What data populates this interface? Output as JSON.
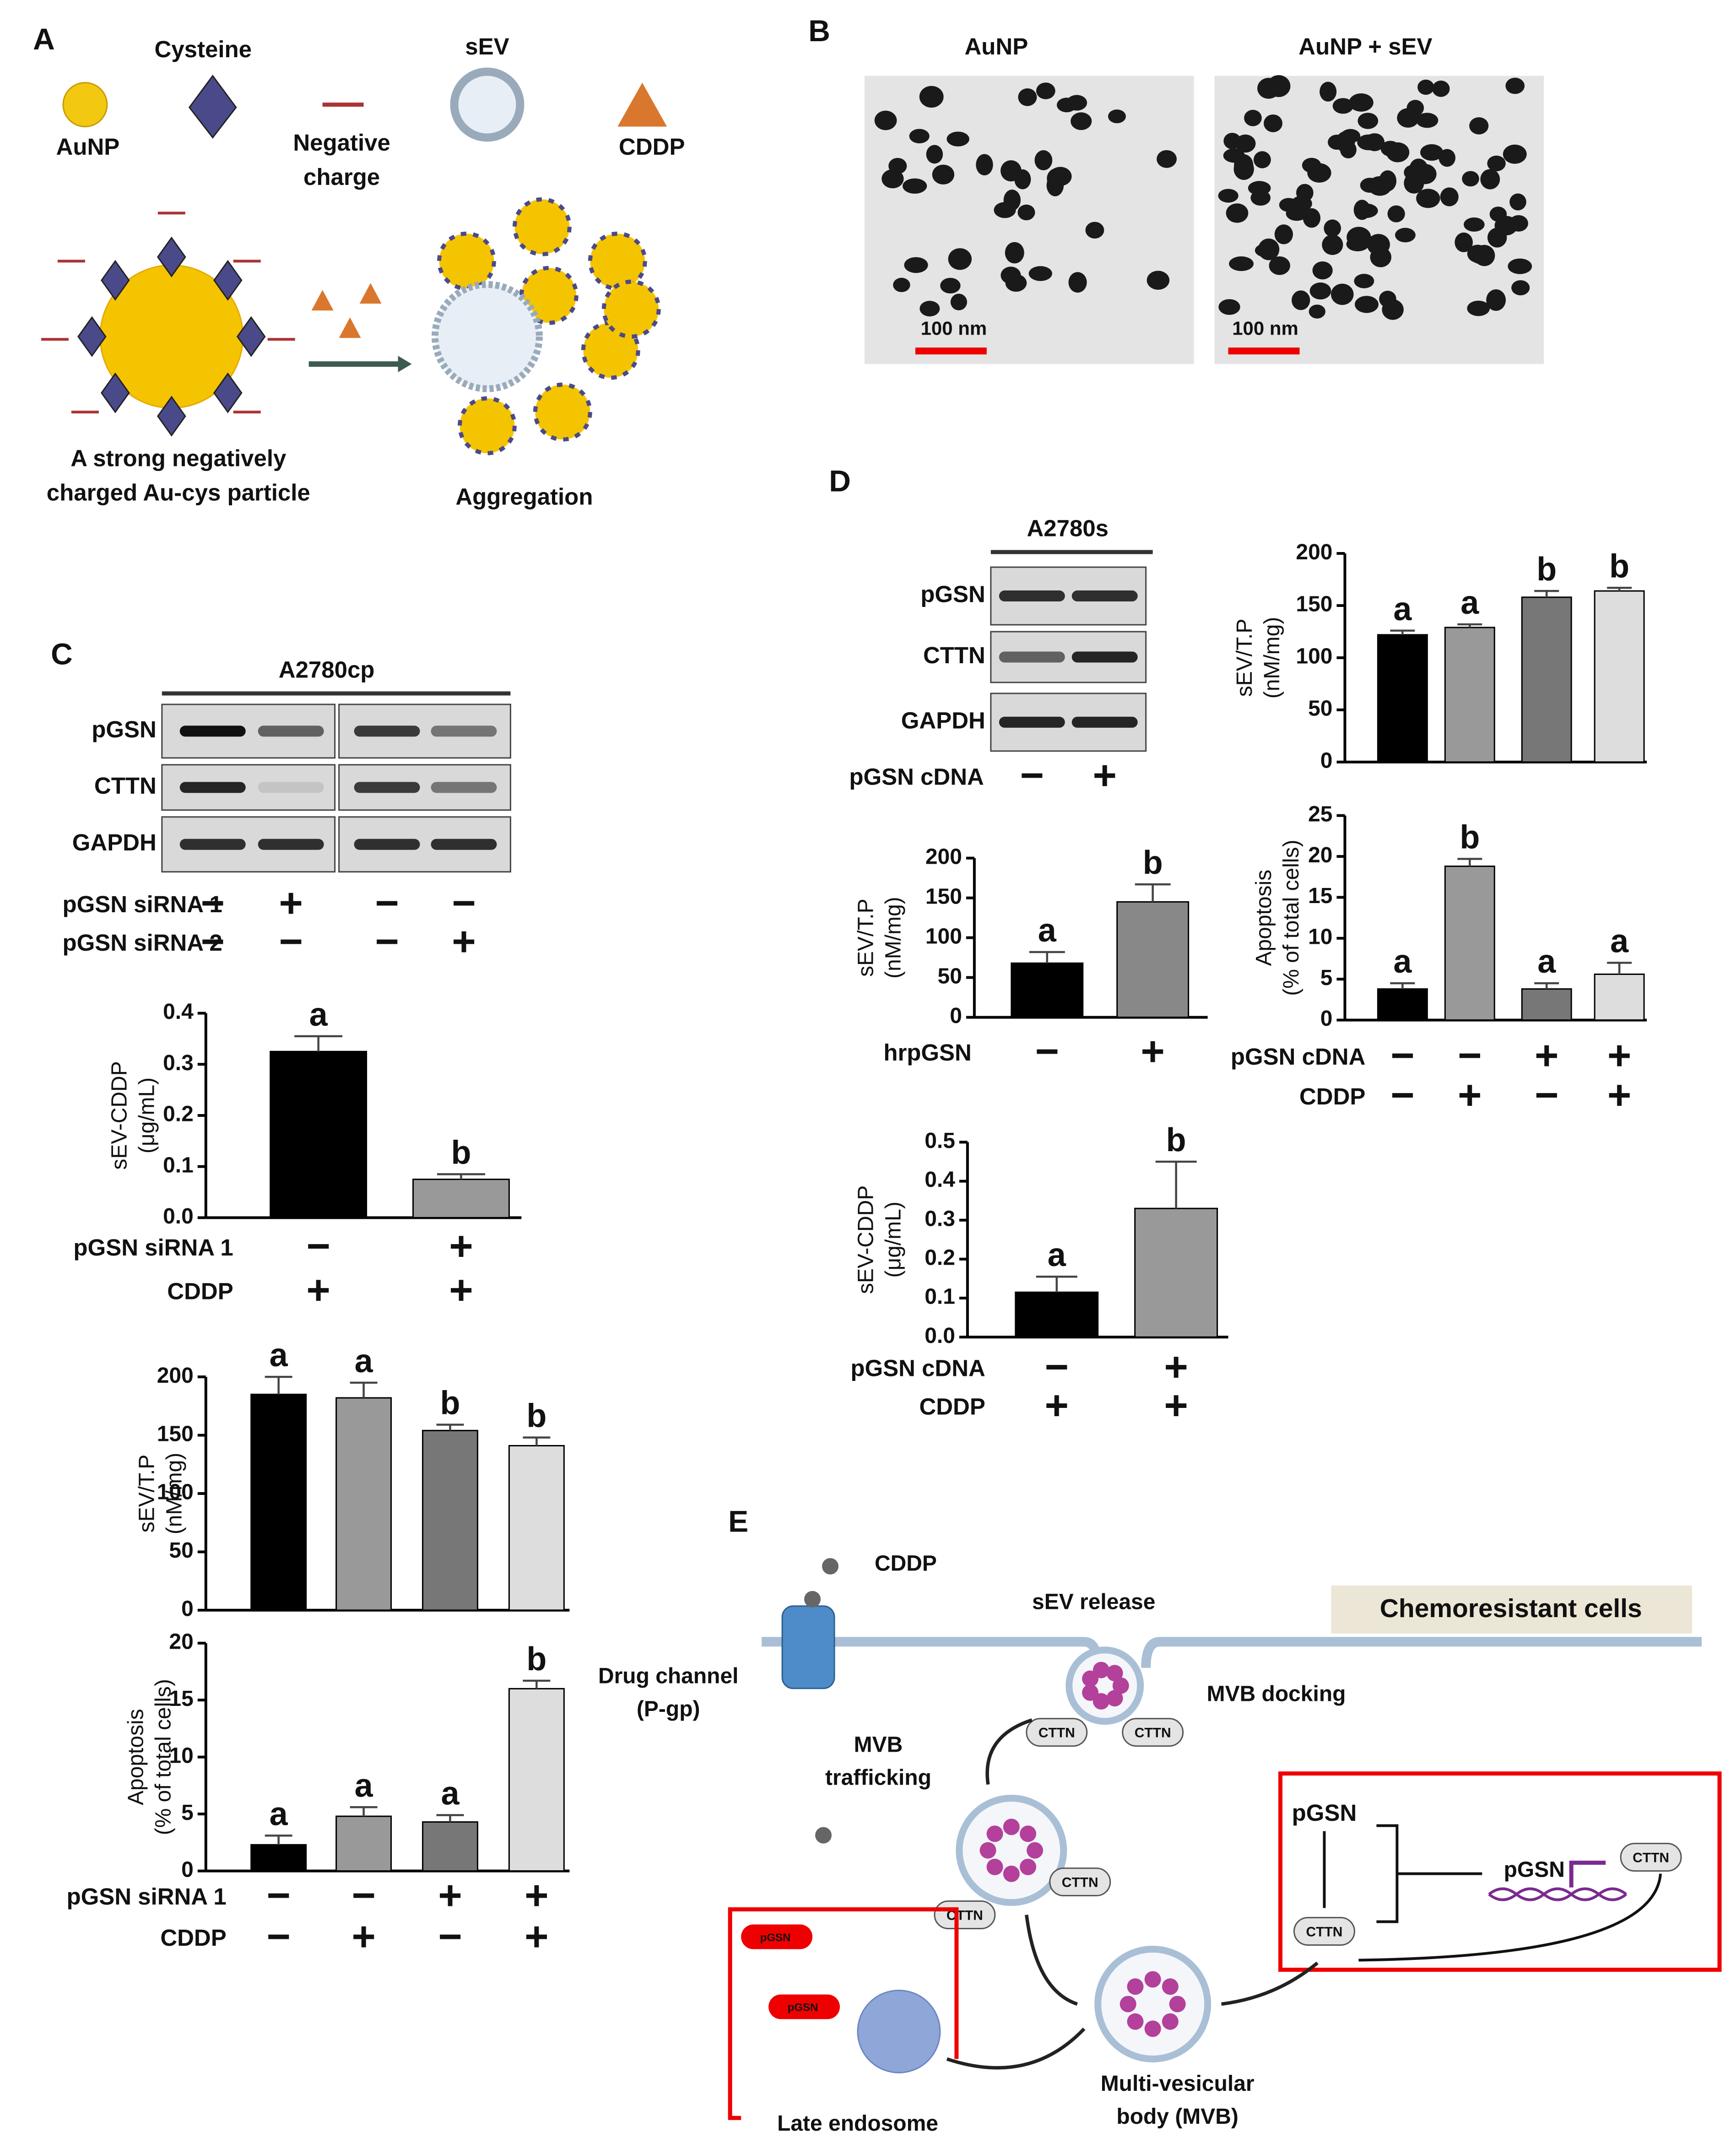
{
  "panel_a": {
    "label": "A",
    "cysteine": "Cysteine",
    "sev": "sEV",
    "aunp": "AuNP",
    "negative_charge": [
      "Negative",
      "charge"
    ],
    "cddp": "CDDP",
    "particle": [
      "A strong negatively",
      "charged Au-cys particle"
    ],
    "aggregation": "Aggregation"
  },
  "panel_b": {
    "label": "B",
    "left_title": "AuNP",
    "right_title": "AuNP + sEV",
    "scale_bars": [
      "100 nm",
      "100 nm"
    ]
  },
  "panel_c": {
    "label": "C",
    "blot": {
      "cell_line": "A2780cp",
      "rows": [
        "pGSN",
        "CTTN",
        "GAPDH"
      ],
      "conditions": [
        {
          "label": "pGSN siRNA 1",
          "signs": [
            "−",
            "+",
            "−",
            "−"
          ]
        },
        {
          "label": "pGSN siRNA 2",
          "signs": [
            "−",
            "−",
            "−",
            "+"
          ]
        }
      ]
    }
  },
  "panel_d": {
    "label": "D",
    "blot": {
      "cell_line": "A2780s",
      "rows": [
        "pGSN",
        "CTTN",
        "GAPDH"
      ],
      "conditions": [
        {
          "label": "pGSN cDNA",
          "signs": [
            "−",
            "+"
          ]
        }
      ]
    }
  },
  "chart_data": [
    {
      "type": "bar",
      "ylabel": [
        "sEV-CDDP",
        "(μg/mL)"
      ],
      "values": [
        0.325,
        0.075
      ],
      "errors": [
        0.03,
        0.01
      ],
      "letters": [
        "a",
        "b"
      ],
      "colors": [
        "#000000",
        "#999999"
      ],
      "ylim": [
        0,
        0.4
      ],
      "yticks": [
        {
          "value": 0,
          "label": "0.0"
        },
        0.1,
        0.2,
        0.3,
        0.4
      ],
      "conditions": [
        {
          "label": "pGSN siRNA 1",
          "signs": [
            "−",
            "+"
          ]
        },
        {
          "label": "CDDP",
          "signs": [
            "+",
            "+"
          ]
        }
      ]
    },
    {
      "type": "bar",
      "ylabel": [
        "sEV/T.P",
        "(nM/mg)"
      ],
      "values": [
        185,
        182,
        154,
        141
      ],
      "errors": [
        15,
        13,
        5,
        7
      ],
      "letters": [
        "a",
        "a",
        "b",
        "b"
      ],
      "colors": [
        "#000000",
        "#999999",
        "#777777",
        "#dddddd"
      ],
      "ylim": [
        0,
        200
      ],
      "yticks": [
        0,
        50,
        100,
        150,
        200
      ],
      "conditions": []
    },
    {
      "type": "bar",
      "ylabel": [
        "Apoptosis",
        "(% of total cells)"
      ],
      "values": [
        2.3,
        4.8,
        4.3,
        16
      ],
      "errors": [
        0.8,
        0.8,
        0.6,
        0.7
      ],
      "letters": [
        "a",
        "a",
        "a",
        "b"
      ],
      "colors": [
        "#000000",
        "#999999",
        "#777777",
        "#dddddd"
      ],
      "ylim": [
        0,
        20
      ],
      "yticks": [
        0,
        5,
        10,
        15,
        20
      ],
      "conditions": [
        {
          "label": "pGSN siRNA 1",
          "signs": [
            "−",
            "−",
            "+",
            "+"
          ]
        },
        {
          "label": "CDDP",
          "signs": [
            "−",
            "+",
            "−",
            "+"
          ]
        }
      ]
    },
    {
      "type": "bar",
      "ylabel": [
        "sEV/T.P",
        "(nM/mg)"
      ],
      "values": [
        122,
        129,
        158,
        164
      ],
      "errors": [
        4,
        3,
        6,
        3
      ],
      "letters": [
        "a",
        "a",
        "b",
        "b"
      ],
      "colors": [
        "#000000",
        "#999999",
        "#777777",
        "#dddddd"
      ],
      "ylim": [
        0,
        200
      ],
      "yticks": [
        0,
        50,
        100,
        150,
        200
      ],
      "conditions": []
    },
    {
      "type": "bar",
      "ylabel": [
        "sEV/T.P",
        "(nM/mg)"
      ],
      "values": [
        68,
        145
      ],
      "errors": [
        14,
        22
      ],
      "letters": [
        "a",
        "b"
      ],
      "colors": [
        "#000000",
        "#888888"
      ],
      "ylim": [
        0,
        200
      ],
      "yticks": [
        0,
        50,
        100,
        150,
        200
      ],
      "conditions": [
        {
          "label": "hrpGSN",
          "signs": [
            "−",
            "+"
          ]
        }
      ]
    },
    {
      "type": "bar",
      "ylabel": [
        "Apoptosis",
        "(% of total cells)"
      ],
      "values": [
        3.8,
        18.8,
        3.8,
        5.6
      ],
      "errors": [
        0.7,
        0.9,
        0.7,
        1.4
      ],
      "letters": [
        "a",
        "b",
        "a",
        "a"
      ],
      "colors": [
        "#000000",
        "#999999",
        "#777777",
        "#dddddd"
      ],
      "ylim": [
        0,
        25
      ],
      "yticks": [
        0,
        5,
        10,
        15,
        20,
        25
      ],
      "conditions": [
        {
          "label": "pGSN cDNA",
          "signs": [
            "−",
            "−",
            "+",
            "+"
          ]
        },
        {
          "label": "CDDP",
          "signs": [
            "−",
            "+",
            "−",
            "+"
          ]
        }
      ]
    },
    {
      "type": "bar",
      "ylabel": [
        "sEV-CDDP",
        "(μg/mL)"
      ],
      "values": [
        0.115,
        0.33
      ],
      "errors": [
        0.04,
        0.12
      ],
      "letters": [
        "a",
        "b"
      ],
      "colors": [
        "#000000",
        "#999999"
      ],
      "ylim": [
        0,
        0.5
      ],
      "yticks": [
        {
          "value": 0,
          "label": "0.0"
        },
        0.1,
        0.2,
        0.3,
        0.4,
        0.5
      ],
      "conditions": [
        {
          "label": "pGSN cDNA",
          "signs": [
            "−",
            "+"
          ]
        },
        {
          "label": "CDDP",
          "signs": [
            "+",
            "+"
          ]
        }
      ]
    }
  ],
  "panel_e": {
    "label": "E",
    "cddp": "CDDP",
    "sev_release": "sEV release",
    "chemoresistant": "Chemoresistant cells",
    "drug_channel": [
      "Drug channel",
      "(P-gp)"
    ],
    "mvb_docking": "MVB docking",
    "mvb_trafficking": [
      "MVB",
      "trafficking"
    ],
    "pgsn_box": "pGSN",
    "pgsn_gene": "pGSN",
    "cttn": [
      "CTTN",
      "CTTN",
      "CTTN",
      "CTTN",
      "CTTN",
      "CTTN"
    ],
    "pgsn_small": [
      "pGSN",
      "pGSN"
    ],
    "late_endosome": "Late endosome",
    "mvb": [
      "Multi-vesicular",
      "body (MVB)"
    ]
  }
}
